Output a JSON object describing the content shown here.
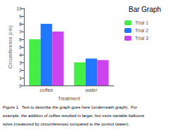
{
  "chart_data": {
    "type": "bar",
    "title": "Bar Graph",
    "categories": [
      "coffee",
      "water"
    ],
    "series": [
      {
        "name": "Trial 1",
        "color": "#44ee44",
        "values": [
          6.0,
          3.0
        ]
      },
      {
        "name": "Trial 2",
        "color": "#2277ff",
        "values": [
          8.0,
          3.5
        ]
      },
      {
        "name": "Trial 3",
        "color": "#cc44ee",
        "values": [
          7.0,
          3.3
        ]
      }
    ],
    "xlabel": "Treatment",
    "ylabel": "Circumference (cm)",
    "ylim": [
      0,
      10
    ],
    "yticks": [
      0,
      1,
      2,
      3,
      4,
      5,
      6,
      7,
      8,
      9,
      10
    ],
    "grid": false,
    "legend": "upper right",
    "annotations": [
      "Figure 1.  Text to describe the graph goes here (underneath graph).  For",
      "example, the addition of coffee resulted in larger, but more variable balloons",
      "sizes (measured by circumference) compared to the control (water)."
    ]
  }
}
